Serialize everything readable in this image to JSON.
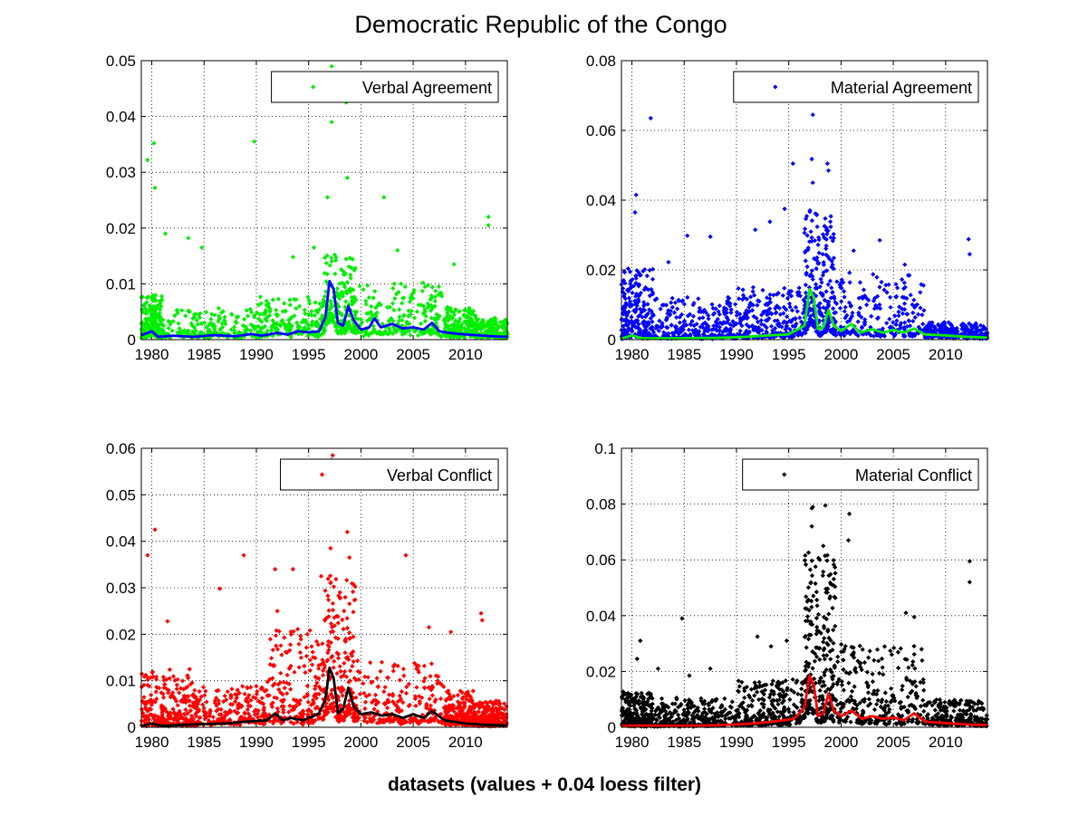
{
  "figure": {
    "title": "Democratic Republic of the Congo",
    "xlabel": "datasets (values + 0.04 loess filter)"
  },
  "chart_data": [
    {
      "type": "scatter",
      "panel": "top-left",
      "legend": "Verbal Agreement",
      "legend_placement": "top-right",
      "marker_color": "#00ee00",
      "line_color": "#0000ff",
      "grid": true,
      "xlim": [
        1979,
        2014
      ],
      "ylim": [
        0,
        0.05
      ],
      "xticks": [
        1980,
        1985,
        1990,
        1995,
        2000,
        2005,
        2010
      ],
      "yticks": [
        "0",
        "0.01",
        "0.02",
        "0.03",
        "0.04",
        "0.05"
      ],
      "trend": [
        [
          1979,
          0.0008
        ],
        [
          1980,
          0.0015
        ],
        [
          1980.6,
          0.0005
        ],
        [
          1982,
          0.0007
        ],
        [
          1984,
          0.0005
        ],
        [
          1986,
          0.0008
        ],
        [
          1988,
          0.0006
        ],
        [
          1989.5,
          0.001
        ],
        [
          1990.5,
          0.0007
        ],
        [
          1992,
          0.0012
        ],
        [
          1993,
          0.0009
        ],
        [
          1994,
          0.0015
        ],
        [
          1995,
          0.0013
        ],
        [
          1996,
          0.0015
        ],
        [
          1996.6,
          0.004
        ],
        [
          1997,
          0.0105
        ],
        [
          1997.4,
          0.009
        ],
        [
          1997.8,
          0.003
        ],
        [
          1998.3,
          0.0025
        ],
        [
          1998.8,
          0.006
        ],
        [
          1999.3,
          0.0035
        ],
        [
          2000,
          0.0018
        ],
        [
          2000.8,
          0.0022
        ],
        [
          2001.3,
          0.0038
        ],
        [
          2001.9,
          0.0022
        ],
        [
          2003,
          0.0028
        ],
        [
          2004,
          0.002
        ],
        [
          2005,
          0.0022
        ],
        [
          2006,
          0.0018
        ],
        [
          2006.8,
          0.003
        ],
        [
          2007.5,
          0.0015
        ],
        [
          2008.5,
          0.0012
        ],
        [
          2009.5,
          0.001
        ],
        [
          2011,
          0.0008
        ],
        [
          2012.5,
          0.0006
        ],
        [
          2014,
          0.0005
        ]
      ],
      "outliers": [
        [
          1979.6,
          0.0322
        ],
        [
          1980.2,
          0.0352
        ],
        [
          1980.3,
          0.0272
        ],
        [
          1981.3,
          0.019
        ],
        [
          1983.5,
          0.0182
        ],
        [
          1984.8,
          0.0165
        ],
        [
          1989.8,
          0.0355
        ],
        [
          1993.5,
          0.0148
        ],
        [
          1995.5,
          0.0165
        ],
        [
          1996.8,
          0.0255
        ],
        [
          1997.2,
          0.049
        ],
        [
          1997.3,
          0.0455
        ],
        [
          1997.2,
          0.039
        ],
        [
          1998.6,
          0.0425
        ],
        [
          1998.7,
          0.029
        ],
        [
          2002.2,
          0.0255
        ],
        [
          2003.5,
          0.016
        ],
        [
          2008.9,
          0.0135
        ],
        [
          2012.2,
          0.022
        ],
        [
          2012.2,
          0.0205
        ]
      ],
      "density": [
        [
          1979,
          1981,
          0.007
        ],
        [
          1981,
          1990,
          0.005
        ],
        [
          1990,
          1996.5,
          0.007
        ],
        [
          1996.5,
          1999.5,
          0.013
        ],
        [
          1999.5,
          2008,
          0.009
        ],
        [
          2008,
          2011,
          0.005
        ],
        [
          2011,
          2014,
          0.003
        ]
      ],
      "point_count": 1400,
      "seed": 11
    },
    {
      "type": "scatter",
      "panel": "top-right",
      "legend": "Material Agreement",
      "legend_placement": "top-right",
      "marker_color": "#0000ff",
      "line_color": "#00ee00",
      "grid": true,
      "xlim": [
        1979,
        2014
      ],
      "ylim": [
        0,
        0.08
      ],
      "xticks": [
        1980,
        1985,
        1990,
        1995,
        2000,
        2005,
        2010
      ],
      "yticks": [
        "0",
        "0.02",
        "0.04",
        "0.06",
        "0.08"
      ],
      "trend": [
        [
          1979,
          0.0003
        ],
        [
          1980,
          0.0012
        ],
        [
          1981,
          0.0004
        ],
        [
          1984,
          0.0004
        ],
        [
          1988,
          0.0005
        ],
        [
          1991,
          0.0008
        ],
        [
          1993,
          0.0012
        ],
        [
          1995,
          0.0015
        ],
        [
          1996.5,
          0.004
        ],
        [
          1997,
          0.0145
        ],
        [
          1997.4,
          0.012
        ],
        [
          1997.8,
          0.003
        ],
        [
          1998.3,
          0.0035
        ],
        [
          1998.8,
          0.0085
        ],
        [
          1999.3,
          0.004
        ],
        [
          2000,
          0.0025
        ],
        [
          2001,
          0.0045
        ],
        [
          2001.8,
          0.002
        ],
        [
          2003,
          0.003
        ],
        [
          2004,
          0.002
        ],
        [
          2005,
          0.0028
        ],
        [
          2006,
          0.002
        ],
        [
          2007,
          0.0032
        ],
        [
          2008,
          0.0015
        ],
        [
          2010,
          0.0012
        ],
        [
          2012,
          0.0008
        ],
        [
          2014,
          0.0006
        ]
      ],
      "outliers": [
        [
          1981.8,
          0.0635
        ],
        [
          1980.4,
          0.0415
        ],
        [
          1980.3,
          0.0365
        ],
        [
          1983.5,
          0.0222
        ],
        [
          1985.3,
          0.0298
        ],
        [
          1987.5,
          0.0295
        ],
        [
          1991.8,
          0.0315
        ],
        [
          1993.2,
          0.0338
        ],
        [
          1994.6,
          0.0375
        ],
        [
          1995.4,
          0.0505
        ],
        [
          1997.3,
          0.0645
        ],
        [
          1997.2,
          0.0518
        ],
        [
          1997.3,
          0.045
        ],
        [
          1998.7,
          0.0505
        ],
        [
          1998.8,
          0.0485
        ],
        [
          2001.2,
          0.0255
        ],
        [
          2003.7,
          0.0285
        ],
        [
          2006.1,
          0.0215
        ],
        [
          2012.2,
          0.0288
        ],
        [
          2012.3,
          0.0245
        ]
      ],
      "density": [
        [
          1979,
          1982,
          0.02
        ],
        [
          1982,
          1990,
          0.012
        ],
        [
          1990,
          1996.5,
          0.015
        ],
        [
          1996.5,
          1999.5,
          0.035
        ],
        [
          1999.5,
          2008,
          0.018
        ],
        [
          2008,
          2014,
          0.004
        ]
      ],
      "point_count": 1400,
      "seed": 23
    },
    {
      "type": "scatter",
      "panel": "bottom-left",
      "legend": "Verbal Conflict",
      "legend_placement": "top-right",
      "marker_color": "#ff0000",
      "line_color": "#000000",
      "grid": true,
      "xlim": [
        1979,
        2014
      ],
      "ylim": [
        0,
        0.06
      ],
      "xticks": [
        1980,
        1985,
        1990,
        1995,
        2000,
        2005,
        2010
      ],
      "yticks": [
        "0",
        "0.01",
        "0.02",
        "0.03",
        "0.04",
        "0.05",
        "0.06"
      ],
      "trend": [
        [
          1979,
          0.0003
        ],
        [
          1980,
          0.0008
        ],
        [
          1981,
          0.0003
        ],
        [
          1984,
          0.0006
        ],
        [
          1987,
          0.0008
        ],
        [
          1989,
          0.0012
        ],
        [
          1991,
          0.0015
        ],
        [
          1991.8,
          0.003
        ],
        [
          1992.5,
          0.0015
        ],
        [
          1993.3,
          0.002
        ],
        [
          1994.5,
          0.0015
        ],
        [
          1996,
          0.003
        ],
        [
          1996.6,
          0.006
        ],
        [
          1997,
          0.0128
        ],
        [
          1997.4,
          0.0105
        ],
        [
          1997.8,
          0.003
        ],
        [
          1998.3,
          0.004
        ],
        [
          1998.8,
          0.0085
        ],
        [
          1999.3,
          0.0045
        ],
        [
          2000,
          0.0028
        ],
        [
          2001,
          0.0032
        ],
        [
          2002,
          0.0025
        ],
        [
          2003,
          0.0028
        ],
        [
          2004,
          0.002
        ],
        [
          2005,
          0.0028
        ],
        [
          2006,
          0.002
        ],
        [
          2006.8,
          0.0035
        ],
        [
          2008,
          0.0015
        ],
        [
          2010,
          0.0008
        ],
        [
          2012,
          0.0005
        ],
        [
          2014,
          0.0004
        ]
      ],
      "outliers": [
        [
          1979.6,
          0.037
        ],
        [
          1980.3,
          0.0425
        ],
        [
          1981.5,
          0.0228
        ],
        [
          1986.5,
          0.0298
        ],
        [
          1988.8,
          0.037
        ],
        [
          1991.8,
          0.034
        ],
        [
          1993.5,
          0.034
        ],
        [
          1996.2,
          0.0325
        ],
        [
          1997.1,
          0.0385
        ],
        [
          1997.3,
          0.0585
        ],
        [
          1997.2,
          0.0575
        ],
        [
          1998.7,
          0.042
        ],
        [
          1998.9,
          0.0365
        ],
        [
          2004.3,
          0.037
        ],
        [
          2011.5,
          0.0245
        ],
        [
          2011.6,
          0.023
        ],
        [
          2008.6,
          0.0205
        ],
        [
          2006.5,
          0.0215
        ],
        [
          1998,
          0.029
        ],
        [
          1992,
          0.025
        ]
      ],
      "density": [
        [
          1979,
          1984,
          0.012
        ],
        [
          1984,
          1991,
          0.008
        ],
        [
          1991,
          1996.5,
          0.02
        ],
        [
          1996.5,
          1999.5,
          0.03
        ],
        [
          1999.5,
          2008,
          0.013
        ],
        [
          2008,
          2011,
          0.007
        ],
        [
          2011,
          2014,
          0.005
        ]
      ],
      "point_count": 1600,
      "seed": 37
    },
    {
      "type": "scatter",
      "panel": "bottom-right",
      "legend": "Material Conflict",
      "legend_placement": "top-right",
      "marker_color": "#000000",
      "line_color": "#ff0000",
      "grid": true,
      "xlim": [
        1979,
        2014
      ],
      "ylim": [
        0,
        0.1
      ],
      "xticks": [
        1980,
        1985,
        1990,
        1995,
        2000,
        2005,
        2010
      ],
      "yticks": [
        "0",
        "0.02",
        "0.04",
        "0.06",
        "0.08",
        "0.1"
      ],
      "trend": [
        [
          1979,
          0.0005
        ],
        [
          1981,
          0.0006
        ],
        [
          1984,
          0.0005
        ],
        [
          1988,
          0.0007
        ],
        [
          1991,
          0.0012
        ],
        [
          1993,
          0.0018
        ],
        [
          1994.5,
          0.0025
        ],
        [
          1995.5,
          0.003
        ],
        [
          1996.5,
          0.007
        ],
        [
          1997,
          0.0185
        ],
        [
          1997.4,
          0.015
        ],
        [
          1997.8,
          0.004
        ],
        [
          1998.3,
          0.005
        ],
        [
          1998.8,
          0.012
        ],
        [
          1999.3,
          0.006
        ],
        [
          2000,
          0.004
        ],
        [
          2001,
          0.006
        ],
        [
          2002,
          0.003
        ],
        [
          2003,
          0.004
        ],
        [
          2004,
          0.003
        ],
        [
          2005,
          0.0035
        ],
        [
          2006,
          0.0025
        ],
        [
          2007,
          0.005
        ],
        [
          2008,
          0.002
        ],
        [
          2010,
          0.0015
        ],
        [
          2012,
          0.001
        ],
        [
          2014,
          0.0008
        ]
      ],
      "outliers": [
        [
          1980.8,
          0.031
        ],
        [
          1980.5,
          0.0245
        ],
        [
          1982.5,
          0.021
        ],
        [
          1984.8,
          0.039
        ],
        [
          1985.5,
          0.0185
        ],
        [
          1987.5,
          0.021
        ],
        [
          1992,
          0.0325
        ],
        [
          1993.3,
          0.029
        ],
        [
          1994.8,
          0.031
        ],
        [
          1997.2,
          0.0785
        ],
        [
          1997.3,
          0.079
        ],
        [
          1997.2,
          0.072
        ],
        [
          1998.5,
          0.0795
        ],
        [
          1998.3,
          0.065
        ],
        [
          2000.8,
          0.0765
        ],
        [
          2000.7,
          0.067
        ],
        [
          2006.2,
          0.041
        ],
        [
          2007,
          0.0395
        ],
        [
          2012.3,
          0.0595
        ],
        [
          2012.3,
          0.052
        ]
      ],
      "density": [
        [
          1979,
          1982,
          0.012
        ],
        [
          1982,
          1990,
          0.01
        ],
        [
          1990,
          1996.5,
          0.016
        ],
        [
          1996.5,
          1999.5,
          0.06
        ],
        [
          1999.5,
          2008,
          0.028
        ],
        [
          2008,
          2014,
          0.009
        ]
      ],
      "point_count": 1600,
      "seed": 53
    }
  ]
}
